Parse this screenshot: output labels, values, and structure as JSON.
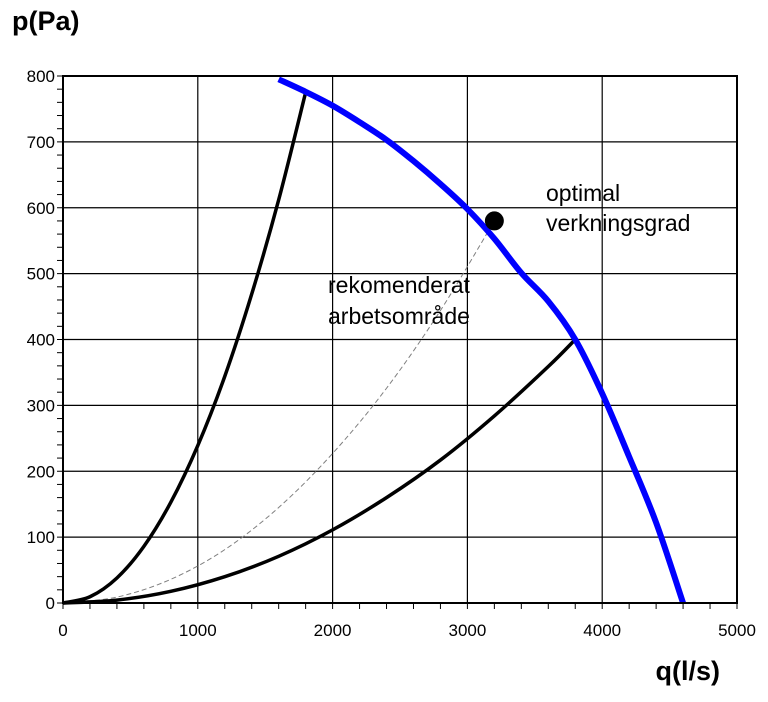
{
  "chart_data": {
    "type": "line",
    "title": "",
    "xlabel": "q(l/s)",
    "ylabel": "p(Pa)",
    "xlim": [
      0,
      5000
    ],
    "ylim": [
      0,
      800
    ],
    "x_ticks": [
      0,
      1000,
      2000,
      3000,
      4000,
      5000
    ],
    "y_ticks": [
      0,
      100,
      200,
      300,
      400,
      500,
      600,
      700,
      800
    ],
    "x_tick_labels": [
      "0",
      "1000",
      "2000",
      "3000",
      "4000",
      "5000"
    ],
    "y_tick_labels": [
      "0",
      "100",
      "200",
      "300",
      "400",
      "500",
      "600",
      "700",
      "800"
    ],
    "grid": true,
    "series": [
      {
        "key": "fan",
        "color": "#0000ff",
        "style": "solid-thick",
        "x": [
          1600,
          1800,
          2000,
          2200,
          2400,
          2600,
          2800,
          3000,
          3200,
          3400,
          3600,
          3800,
          4000,
          4200,
          4400,
          4600
        ],
        "y": [
          795,
          776,
          755,
          730,
          703,
          671,
          636,
          598,
          553,
          501,
          458,
          400,
          318,
          222,
          122,
          0
        ]
      },
      {
        "key": "upper-system",
        "color": "#000000",
        "style": "solid",
        "x": [
          0,
          200,
          400,
          600,
          800,
          1000,
          1200,
          1400,
          1600,
          1800
        ],
        "y": [
          0,
          9.5,
          38,
          86,
          153,
          239,
          344,
          469,
          612,
          775
        ]
      },
      {
        "key": "lower-system",
        "color": "#000000",
        "style": "solid",
        "x": [
          0,
          400,
          800,
          1200,
          1600,
          2000,
          2400,
          2800,
          3200,
          3600,
          3800
        ],
        "y": [
          0,
          4.4,
          17.7,
          39.9,
          70.9,
          111,
          160,
          217,
          284,
          359,
          400
        ]
      },
      {
        "key": "optimal-system",
        "color": "#808080",
        "style": "dashed",
        "x": [
          0,
          400,
          800,
          1200,
          1600,
          2000,
          2400,
          2800,
          3200
        ],
        "y": [
          0,
          9,
          36,
          81,
          145,
          227,
          326,
          444,
          580
        ]
      }
    ],
    "optimal_point": {
      "x": 3200,
      "y": 580
    },
    "annotations": [
      {
        "key": "optimal",
        "lines": [
          "optimal",
          "verkningsgrad"
        ]
      },
      {
        "key": "recommended",
        "lines": [
          "rekomenderat",
          "arbetsområde"
        ]
      }
    ]
  }
}
